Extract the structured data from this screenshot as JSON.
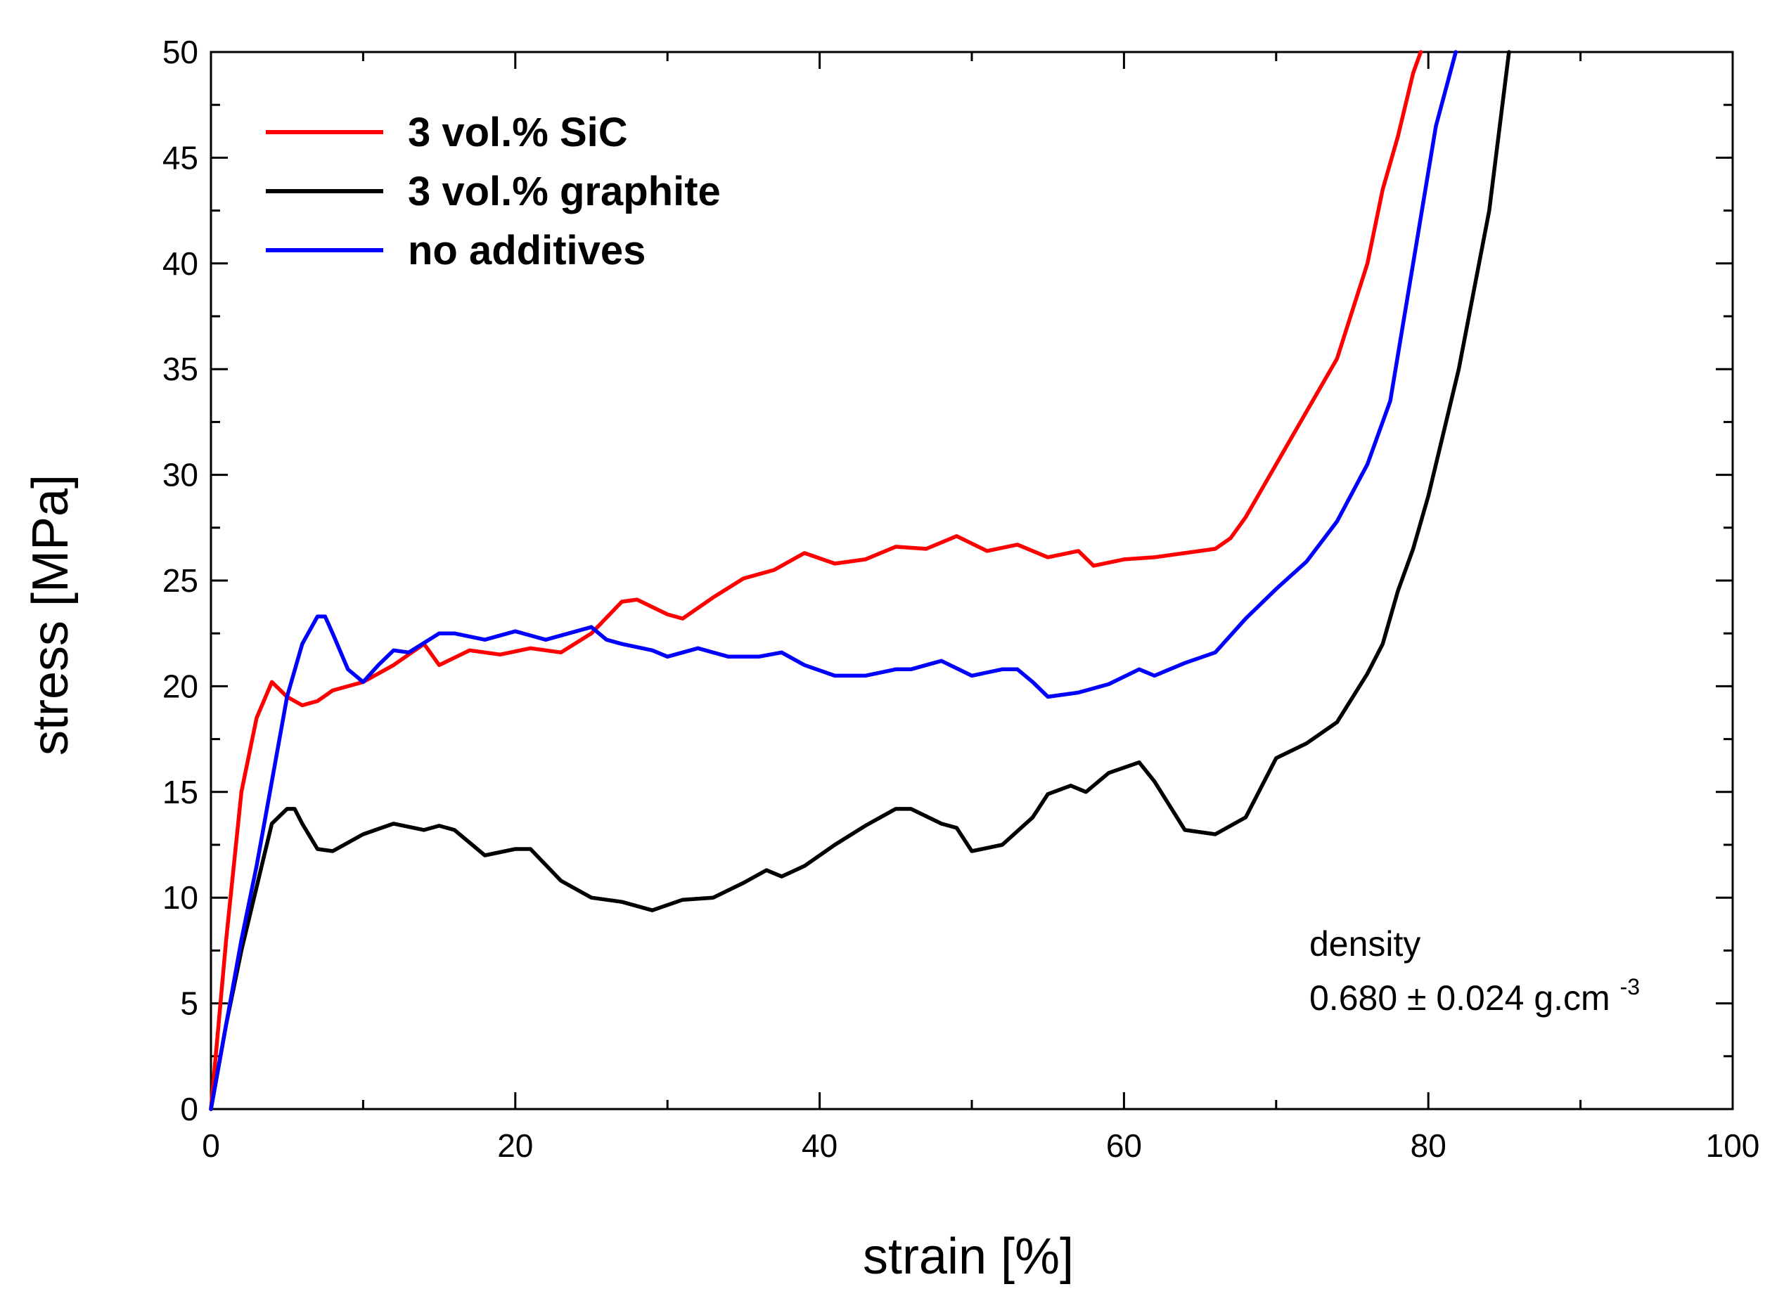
{
  "chart_data": {
    "type": "line",
    "title": "",
    "xlabel": "strain [%]",
    "ylabel": "stress [MPa]",
    "xlim": [
      0,
      100
    ],
    "ylim": [
      0,
      50
    ],
    "xticks": [
      0,
      20,
      40,
      60,
      80,
      100
    ],
    "yticks": [
      0,
      5,
      10,
      15,
      20,
      25,
      30,
      35,
      40,
      45,
      50
    ],
    "xtick_labels": [
      "0",
      "20",
      "40",
      "60",
      "80",
      "100"
    ],
    "ytick_labels": [
      "0",
      "5",
      "10",
      "15",
      "20",
      "25",
      "30",
      "35",
      "40",
      "45",
      "50"
    ],
    "legend_position": "top-left",
    "series": [
      {
        "name": "3 vol.% SiC",
        "color": "#ff0000",
        "x": [
          0,
          1,
          2,
          3,
          4,
          5,
          6,
          7,
          8,
          10,
          12,
          14,
          15,
          17,
          19,
          21,
          23,
          25,
          27,
          28,
          30,
          31,
          33,
          35,
          37,
          39,
          41,
          43,
          45,
          47,
          49,
          51,
          53,
          55,
          57,
          58,
          60,
          62,
          64,
          66,
          67,
          68,
          70,
          72,
          74,
          76,
          77,
          78,
          79,
          79.5
        ],
        "y": [
          0,
          8,
          15,
          18.5,
          20.2,
          19.5,
          19.1,
          19.3,
          19.8,
          20.2,
          21.0,
          22.0,
          21.0,
          21.7,
          21.5,
          21.8,
          21.6,
          22.5,
          24.0,
          24.1,
          23.4,
          23.2,
          24.2,
          25.1,
          25.5,
          26.3,
          25.8,
          26.0,
          26.6,
          26.5,
          27.1,
          26.4,
          26.7,
          26.1,
          26.4,
          25.7,
          26.0,
          26.1,
          26.3,
          26.5,
          27.0,
          28.0,
          30.5,
          33.0,
          35.5,
          40.0,
          43.5,
          46.0,
          49.0,
          50.0
        ]
      },
      {
        "name": "3 vol.% graphite",
        "color": "#000000",
        "x": [
          0,
          1,
          2,
          3,
          4,
          5,
          5.5,
          6,
          7,
          8,
          10,
          12,
          14,
          15,
          16,
          18,
          20,
          21,
          23,
          25,
          27,
          29,
          31,
          33,
          35,
          36.5,
          37.5,
          39,
          41,
          43,
          45,
          46,
          48,
          49,
          50,
          52,
          54,
          55,
          56.5,
          57.5,
          59,
          61,
          62,
          64,
          66,
          68,
          70,
          72,
          74,
          76,
          77,
          78,
          79,
          80,
          82,
          84,
          85.3
        ],
        "y": [
          0,
          4,
          7.5,
          10.5,
          13.5,
          14.2,
          14.2,
          13.5,
          12.3,
          12.2,
          13.0,
          13.5,
          13.2,
          13.4,
          13.2,
          12.0,
          12.3,
          12.3,
          10.8,
          10.0,
          9.8,
          9.4,
          9.9,
          10.0,
          10.7,
          11.3,
          11.0,
          11.5,
          12.5,
          13.4,
          14.2,
          14.2,
          13.5,
          13.3,
          12.2,
          12.5,
          13.8,
          14.9,
          15.3,
          15.0,
          15.9,
          16.4,
          15.5,
          13.2,
          13.0,
          13.8,
          16.6,
          17.3,
          18.3,
          20.6,
          22.0,
          24.5,
          26.5,
          29.0,
          35.0,
          42.5,
          50.0
        ]
      },
      {
        "name": "no additives",
        "color": "#0000ff",
        "x": [
          0,
          1,
          2,
          3,
          4,
          5,
          6,
          7,
          7.5,
          8,
          9,
          10,
          11,
          12,
          13,
          15,
          16,
          18,
          20,
          22,
          24,
          25,
          26,
          27,
          29,
          30,
          32,
          34,
          36,
          37.5,
          39,
          41,
          43,
          45,
          46,
          48,
          50,
          52,
          53,
          54,
          55,
          57,
          59,
          61,
          62,
          64,
          66,
          68,
          70,
          72,
          74,
          76,
          77.5,
          79,
          80.5,
          81.8
        ],
        "y": [
          0,
          4,
          8,
          11.5,
          15.5,
          19.5,
          22.0,
          23.3,
          23.3,
          22.5,
          20.8,
          20.2,
          21.0,
          21.7,
          21.6,
          22.5,
          22.5,
          22.2,
          22.6,
          22.2,
          22.6,
          22.8,
          22.2,
          22.0,
          21.7,
          21.4,
          21.8,
          21.4,
          21.4,
          21.6,
          21.0,
          20.5,
          20.5,
          20.8,
          20.8,
          21.2,
          20.5,
          20.8,
          20.8,
          20.2,
          19.5,
          19.7,
          20.1,
          20.8,
          20.5,
          21.1,
          21.6,
          23.2,
          24.6,
          25.9,
          27.8,
          30.5,
          33.5,
          40.0,
          46.5,
          50.0
        ]
      }
    ],
    "annotation": {
      "line1": "density",
      "line2": "0.680 ± 0.024 g.cm",
      "superscript": "-3"
    }
  }
}
